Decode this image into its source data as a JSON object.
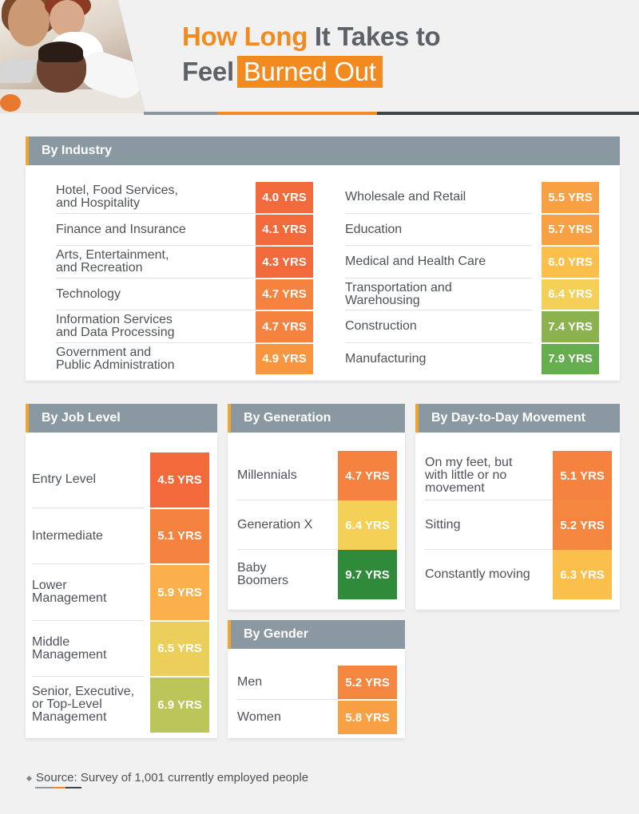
{
  "header": {
    "title_line1_highlight": "How Long",
    "title_line1_rest": " It Takes to",
    "title_line2_start": "Feel",
    "title_line2_box": "Burned Out"
  },
  "colors": {
    "orange_red": "#f26a3b",
    "orange": "#f5823f",
    "light_orange": "#f8a044",
    "amber": "#fbbf4b",
    "yellow": "#f4d057",
    "olive": "#bcc55a",
    "green": "#66ad4f",
    "dark_green": "#2f8a3a",
    "header_grey": "#8a99a1",
    "accent": "#f28a1f"
  },
  "industry": {
    "heading": "By Industry",
    "left": [
      {
        "label": "Hotel, Food Services,\nand Hospitality",
        "value": "4.0 YRS",
        "color": "#f26a3b"
      },
      {
        "label": "Finance and Insurance",
        "value": "4.1 YRS",
        "color": "#f26a3b"
      },
      {
        "label": "Arts, Entertainment,\nand Recreation",
        "value": "4.3 YRS",
        "color": "#f26a3b"
      },
      {
        "label": "Technology",
        "value": "4.7 YRS",
        "color": "#f5823f"
      },
      {
        "label": "Information Services\nand Data Processing",
        "value": "4.7 YRS",
        "color": "#f5823f"
      },
      {
        "label": "Government and\nPublic Administration",
        "value": "4.9 YRS",
        "color": "#f8963f"
      }
    ],
    "right": [
      {
        "label": "Wholesale and Retail",
        "value": "5.5 YRS",
        "color": "#f8a044"
      },
      {
        "label": "Education",
        "value": "5.7 YRS",
        "color": "#f8a044"
      },
      {
        "label": "Medical and Health Care",
        "value": "6.0 YRS",
        "color": "#fbbf4b"
      },
      {
        "label": "Transportation and\nWarehousing",
        "value": "6.4 YRS",
        "color": "#f4d057"
      },
      {
        "label": "Construction",
        "value": "7.4 YRS",
        "color": "#8bb24f"
      },
      {
        "label": "Manufacturing",
        "value": "7.9 YRS",
        "color": "#66ad4f"
      }
    ]
  },
  "job_level": {
    "heading": "By Job Level",
    "rows": [
      {
        "label": "Entry Level",
        "value": "4.5 YRS",
        "color": "#f26a3b"
      },
      {
        "label": "Intermediate",
        "value": "5.1 YRS",
        "color": "#f5823f"
      },
      {
        "label": "Lower\nManagement",
        "value": "5.9 YRS",
        "color": "#fbb04b"
      },
      {
        "label": "Middle\nManagement",
        "value": "6.5 YRS",
        "color": "#ecce5a"
      },
      {
        "label": "Senior, Executive,\nor Top-Level\nManagement",
        "value": "6.9 YRS",
        "color": "#bcc55a"
      }
    ]
  },
  "generation": {
    "heading": "By Generation",
    "rows": [
      {
        "label": "Millennials",
        "value": "4.7 YRS",
        "color": "#f5823f"
      },
      {
        "label": "Generation X",
        "value": "6.4 YRS",
        "color": "#f4d057"
      },
      {
        "label": "Baby\nBoomers",
        "value": "9.7 YRS",
        "color": "#2f8a3a"
      }
    ]
  },
  "gender": {
    "heading": "By Gender",
    "rows": [
      {
        "label": "Men",
        "value": "5.2 YRS",
        "color": "#f5863f"
      },
      {
        "label": "Women",
        "value": "5.8 YRS",
        "color": "#f8a044"
      }
    ]
  },
  "movement": {
    "heading": "By Day-to-Day Movement",
    "rows": [
      {
        "label": "On my feet, but\nwith little or no\nmovement",
        "value": "5.1 YRS",
        "color": "#f5823f"
      },
      {
        "label": "Sitting",
        "value": "5.2 YRS",
        "color": "#f5863f"
      },
      {
        "label": "Constantly moving",
        "value": "6.3 YRS",
        "color": "#fbc04b"
      }
    ]
  },
  "source": {
    "label": "Source:",
    "text": " Survey of 1,001 currently employed people"
  }
}
